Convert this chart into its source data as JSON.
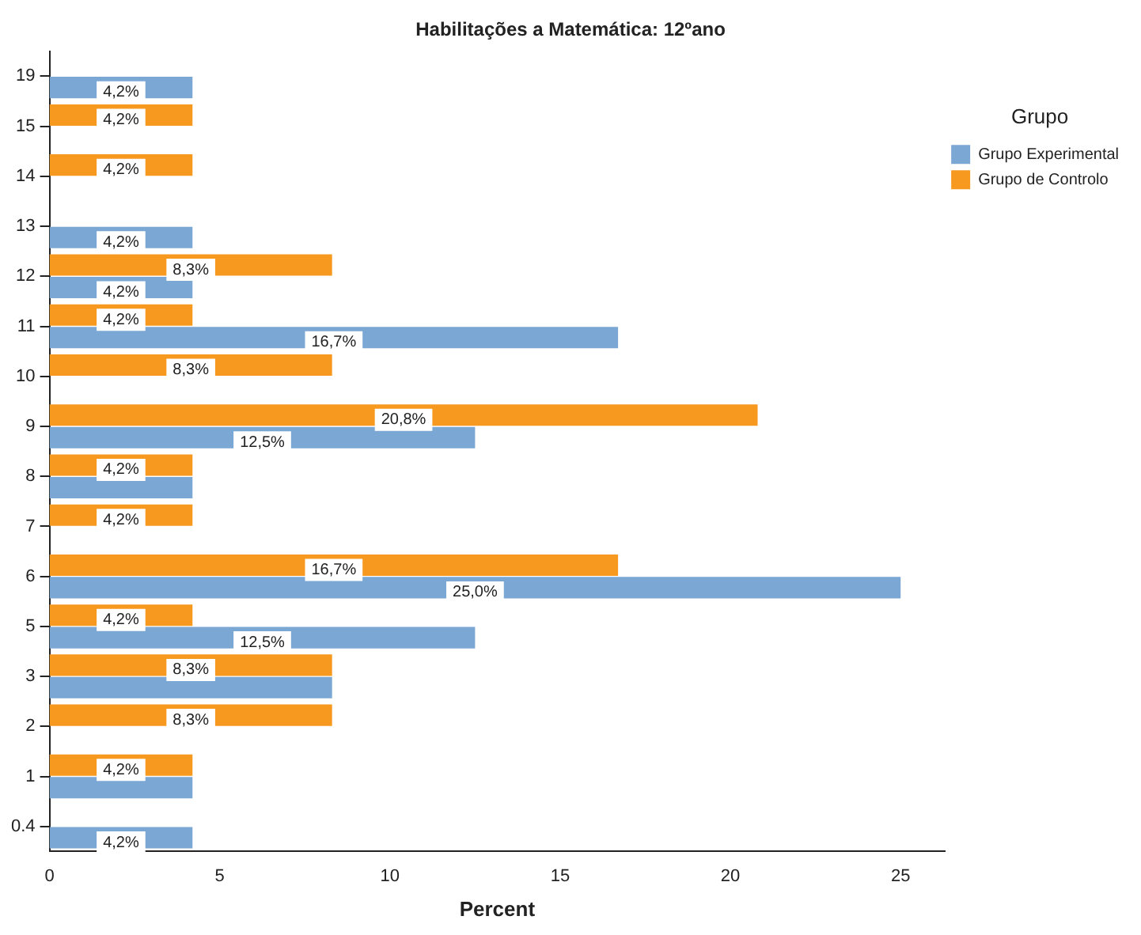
{
  "chart_data": {
    "type": "bar",
    "orientation": "horizontal",
    "title": "Habilitações a Matemática: 12ºano",
    "xlabel": "Percent",
    "legend_title": "Grupo",
    "legend": "right",
    "categories": [
      "19",
      "15",
      "14",
      "13",
      "12",
      "11",
      "10",
      "9",
      "8",
      "7",
      "6",
      "5",
      "3",
      "2",
      "1",
      "0.4"
    ],
    "series": [
      {
        "name": "Grupo Experimental",
        "color": "#7ba7d4",
        "values": [
          4.2,
          null,
          null,
          4.2,
          4.2,
          16.7,
          null,
          12.5,
          4.2,
          null,
          25.0,
          12.5,
          8.3,
          null,
          4.2,
          4.2
        ],
        "value_labels": [
          "4,2%",
          null,
          null,
          "4,2%",
          "4,2%",
          "16,7%",
          null,
          "12,5%",
          null,
          null,
          "25,0%",
          "12,5%",
          null,
          null,
          null,
          "4,2%"
        ]
      },
      {
        "name": "Grupo de Controlo",
        "color": "#f7991f",
        "values": [
          null,
          4.2,
          4.2,
          null,
          8.3,
          4.2,
          8.3,
          20.8,
          4.2,
          4.2,
          16.7,
          4.2,
          8.3,
          8.3,
          4.2,
          null
        ],
        "value_labels": [
          null,
          "4,2%",
          "4,2%",
          null,
          "8,3%",
          "4,2%",
          "8,3%",
          "20,8%",
          "4,2%",
          "4,2%",
          "16,7%",
          "4,2%",
          "8,3%",
          "8,3%",
          "4,2%",
          null
        ]
      }
    ],
    "xlim": [
      0,
      26.3
    ],
    "xticks": [
      0,
      5,
      10,
      15,
      20,
      25
    ],
    "grid": false
  }
}
